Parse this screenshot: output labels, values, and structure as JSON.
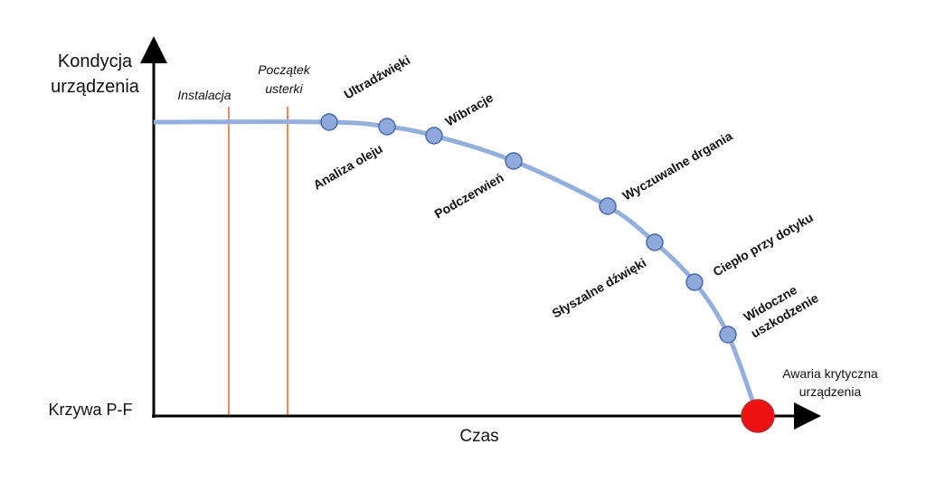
{
  "title": "Krzywa P-F",
  "y_axis": {
    "label": [
      "Kondycja",
      "urządzenia"
    ]
  },
  "x_axis": {
    "label": "Czas"
  },
  "events": [
    {
      "label": "Instalacja"
    },
    {
      "label": [
        "Początek",
        "usterki"
      ]
    }
  ],
  "nodes": [
    {
      "label": "Ultradźwięki"
    },
    {
      "label": "Analiza oleju"
    },
    {
      "label": "Wibracje"
    },
    {
      "label": "Podczerwień"
    },
    {
      "label": "Wyczuwalne drgania"
    },
    {
      "label": "Słyszalne dźwięki"
    },
    {
      "label": "Ciepło przy dotyku"
    },
    {
      "label": [
        "Widoczne",
        "uszkodzenie"
      ]
    }
  ],
  "failure": {
    "label": [
      "Awaria krytyczna",
      "urządzenia"
    ]
  }
}
